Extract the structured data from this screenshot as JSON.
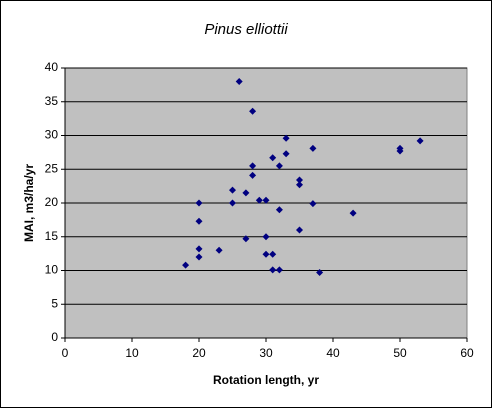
{
  "chart_data": {
    "type": "scatter",
    "title": "Pinus elliottii",
    "x_label": "Rotation length, yr",
    "y_label": "MAI, m3/ha/yr",
    "color": "#000080",
    "plot_background": "#c0c0c0",
    "grid": true,
    "xlim": [
      0,
      60
    ],
    "xticks": [
      0,
      10,
      20,
      30,
      40,
      50,
      60
    ],
    "ylim": [
      0,
      40
    ],
    "yticks": [
      0,
      5,
      10,
      15,
      20,
      25,
      30,
      35,
      40
    ],
    "x": [
      26,
      28,
      33,
      37,
      31,
      33,
      32,
      28,
      28,
      27,
      25,
      25,
      29,
      30,
      20,
      20,
      35,
      35,
      37,
      32,
      43,
      35,
      27,
      30,
      20,
      23,
      20,
      30,
      31,
      18,
      31,
      32,
      38,
      50,
      50,
      53
    ],
    "values": [
      38,
      33.6,
      29.6,
      28.1,
      26.7,
      27.3,
      25.5,
      25.5,
      24.1,
      21.5,
      21.9,
      20,
      20.4,
      20.4,
      20,
      17.3,
      23.4,
      22.7,
      19.9,
      19,
      18.5,
      16,
      14.7,
      15,
      13.2,
      13,
      12,
      12.4,
      12.4,
      10.8,
      10.1,
      10.1,
      9.7,
      28.1,
      27.7,
      29.2
    ]
  }
}
